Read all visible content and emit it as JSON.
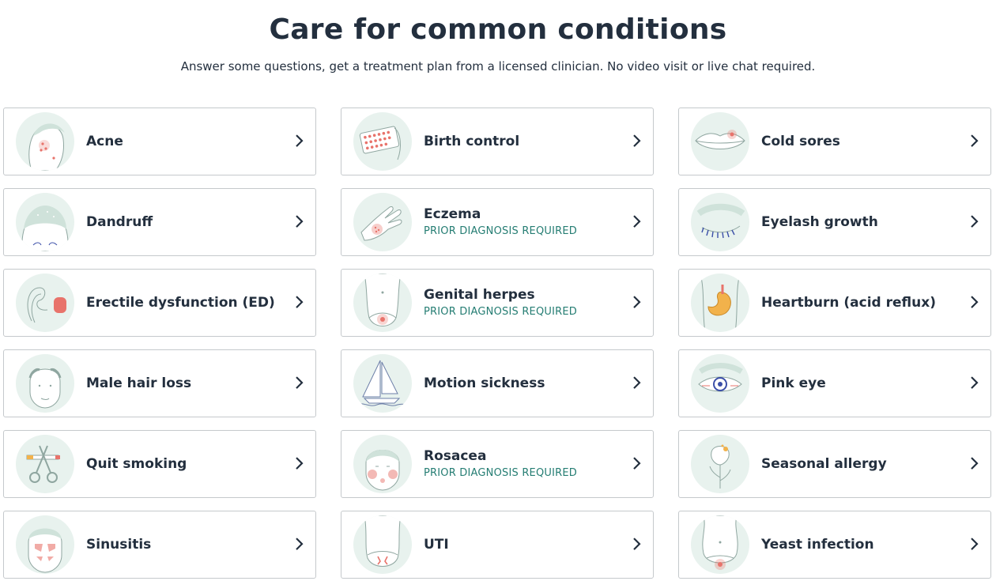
{
  "header": {
    "title": "Care for common conditions",
    "subtitle": "Answer some questions, get a treatment plan from a licensed clinician. No video visit or live chat required."
  },
  "conditions": [
    {
      "label": "Acne",
      "note": "",
      "icon": "acne-face-icon"
    },
    {
      "label": "Birth control",
      "note": "",
      "icon": "birth-control-pills-icon"
    },
    {
      "label": "Cold sores",
      "note": "",
      "icon": "lips-icon"
    },
    {
      "label": "Dandruff",
      "note": "",
      "icon": "scalp-icon"
    },
    {
      "label": "Eczema",
      "note": "PRIOR DIAGNOSIS REQUIRED",
      "icon": "hand-rash-icon"
    },
    {
      "label": "Eyelash growth",
      "note": "",
      "icon": "eyelash-icon"
    },
    {
      "label": "Erectile dysfunction (ED)",
      "note": "",
      "icon": "ed-icon"
    },
    {
      "label": "Genital herpes",
      "note": "PRIOR DIAGNOSIS REQUIRED",
      "icon": "torso-lower-icon"
    },
    {
      "label": "Heartburn (acid reflux)",
      "note": "",
      "icon": "stomach-icon"
    },
    {
      "label": "Male hair loss",
      "note": "",
      "icon": "male-head-icon"
    },
    {
      "label": "Motion sickness",
      "note": "",
      "icon": "sailboat-icon"
    },
    {
      "label": "Pink eye",
      "note": "",
      "icon": "eye-icon"
    },
    {
      "label": "Quit smoking",
      "note": "",
      "icon": "scissors-cigarette-icon"
    },
    {
      "label": "Rosacea",
      "note": "PRIOR DIAGNOSIS REQUIRED",
      "icon": "flushed-face-icon"
    },
    {
      "label": "Seasonal allergy",
      "note": "",
      "icon": "flower-icon"
    },
    {
      "label": "Sinusitis",
      "note": "",
      "icon": "sinus-face-icon"
    },
    {
      "label": "UTI",
      "note": "",
      "icon": "pelvis-icon"
    },
    {
      "label": "Yeast infection",
      "note": "",
      "icon": "torso-icon"
    }
  ],
  "colors": {
    "text": "#232f3e",
    "note": "#257d73",
    "border": "#c5c9cc",
    "illustration_bg": "#e8f2ee",
    "accent_red": "#e8736b",
    "accent_blue": "#3b4fa8"
  }
}
